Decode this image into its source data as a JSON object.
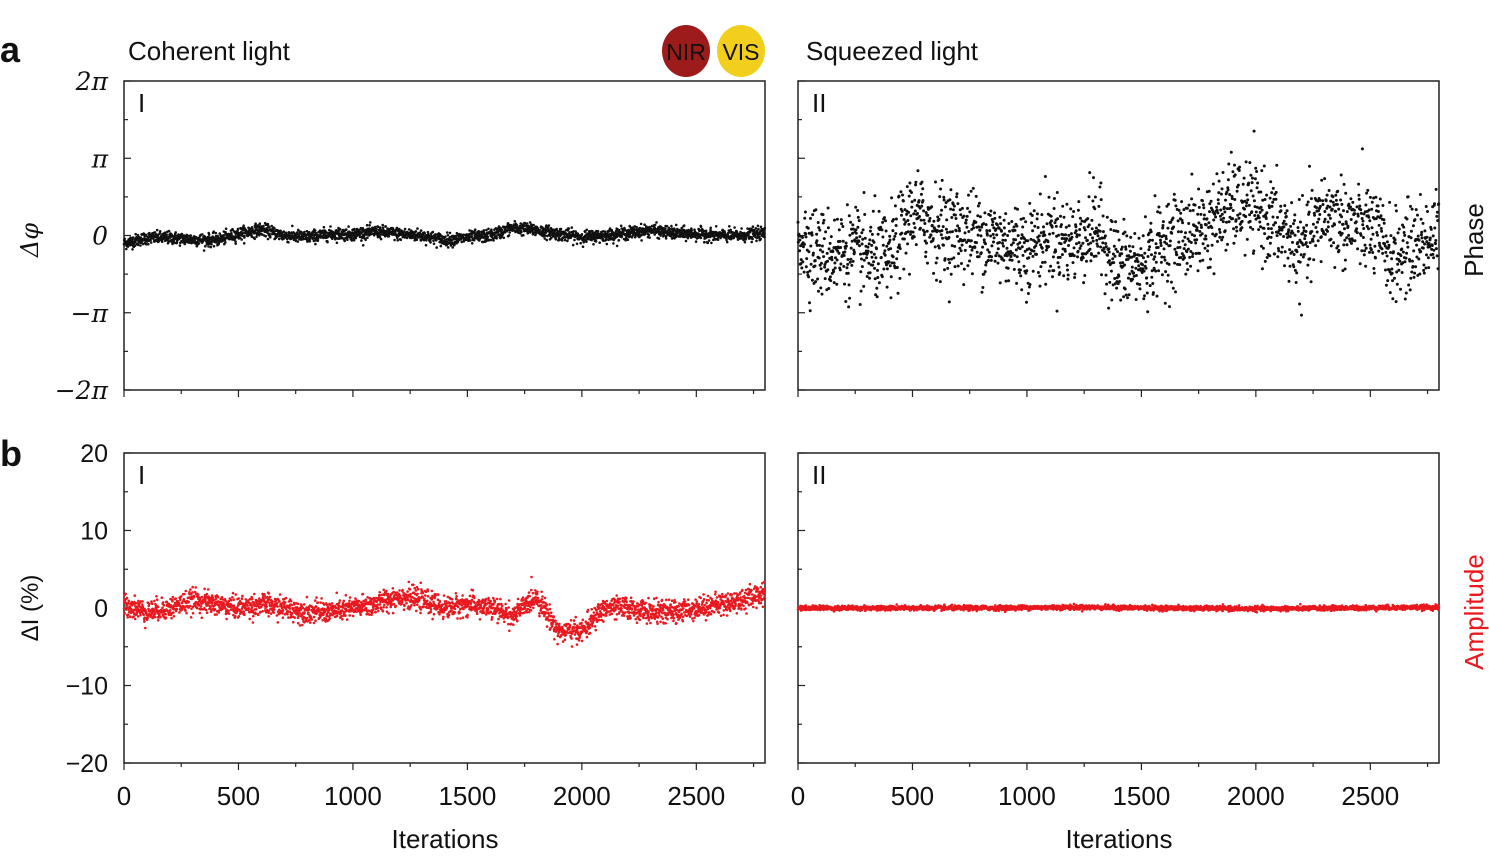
{
  "figure": {
    "panel_letters": [
      "a",
      "b"
    ],
    "column_titles": [
      "Coherent light",
      "Squeezed light"
    ],
    "badges": [
      {
        "label": "NIR",
        "color": "#9e1b1b"
      },
      {
        "label": "VIS",
        "color": "#f2cf1d"
      }
    ],
    "row_side_labels": [
      {
        "label": "Phase",
        "color": "#111111"
      },
      {
        "label": "Amplitude",
        "color": "#e8191f"
      }
    ],
    "colors": {
      "phase": "#111111",
      "amplitude": "#e8191f"
    }
  },
  "chart_data": [
    {
      "type": "scatter",
      "panel": "a",
      "subpanel_label": "I",
      "ylabel": "Δφ",
      "xlabel": "",
      "ytick_labels": [
        "2π",
        "π",
        "0",
        "−π",
        "−2π"
      ],
      "yticks_pi_units": [
        2,
        1,
        0,
        -1,
        -2
      ],
      "ylim_pi_units": [
        -2,
        2
      ],
      "xlim": [
        0,
        2800
      ],
      "x": [
        0,
        100,
        200,
        300,
        400,
        500,
        600,
        700,
        800,
        900,
        1000,
        1100,
        1200,
        1300,
        1400,
        1500,
        1600,
        1700,
        1800,
        1900,
        2000,
        2100,
        2200,
        2300,
        2400,
        2500,
        2600,
        2700,
        2800
      ],
      "y_pi_units": [
        -0.1,
        -0.03,
        -0.03,
        -0.05,
        -0.06,
        0.02,
        0.08,
        0.0,
        -0.02,
        0.02,
        0.02,
        0.05,
        0.02,
        0.0,
        -0.06,
        -0.03,
        0.0,
        0.1,
        0.07,
        0.02,
        -0.02,
        0.0,
        0.03,
        0.07,
        0.03,
        0.02,
        0.0,
        0.0,
        0.03
      ],
      "scatter_spread_pi_units": 0.04,
      "color": "#111111"
    },
    {
      "type": "scatter",
      "panel": "a",
      "subpanel_label": "II",
      "ylim_pi_units": [
        -2,
        2
      ],
      "xlim": [
        0,
        2800
      ],
      "x": [
        0,
        100,
        200,
        300,
        400,
        500,
        600,
        700,
        800,
        900,
        1000,
        1100,
        1200,
        1300,
        1400,
        1500,
        1600,
        1700,
        1800,
        1900,
        2000,
        2100,
        2200,
        2300,
        2400,
        2500,
        2600,
        2700,
        2800
      ],
      "y_pi_units": [
        0.0,
        -0.25,
        -0.2,
        -0.25,
        -0.3,
        0.3,
        0.1,
        0.05,
        0.0,
        -0.1,
        -0.15,
        0.0,
        -0.1,
        0.1,
        -0.4,
        -0.4,
        -0.1,
        0.0,
        0.15,
        0.4,
        0.35,
        0.1,
        -0.2,
        0.3,
        0.15,
        0.1,
        -0.3,
        -0.1,
        0.0
      ],
      "scatter_spread_pi_units": 0.28,
      "color": "#111111"
    },
    {
      "type": "scatter",
      "panel": "b",
      "subpanel_label": "I",
      "ylabel": "ΔI (%)",
      "xlabel": "Iterations",
      "ytick_labels": [
        "20",
        "10",
        "0",
        "−10",
        "−20"
      ],
      "yticks": [
        20,
        10,
        0,
        -10,
        -20
      ],
      "xtick_labels": [
        "0",
        "500",
        "1000",
        "1500",
        "2000",
        "2500"
      ],
      "xticks": [
        0,
        500,
        1000,
        1500,
        2000,
        2500
      ],
      "ylim": [
        -20,
        20
      ],
      "xlim": [
        0,
        2800
      ],
      "x": [
        0,
        100,
        200,
        300,
        400,
        500,
        600,
        700,
        800,
        900,
        1000,
        1100,
        1200,
        1300,
        1400,
        1500,
        1600,
        1700,
        1800,
        1900,
        2000,
        2100,
        2200,
        2300,
        2400,
        2500,
        2600,
        2700,
        2800
      ],
      "y": [
        0.5,
        -0.5,
        0,
        1,
        0.5,
        0,
        0.5,
        0,
        -0.5,
        -0.5,
        0,
        0.5,
        1.5,
        1,
        0,
        0.5,
        0,
        -1,
        1.5,
        -3,
        -3,
        0,
        0,
        -0.5,
        -0.5,
        0,
        0.5,
        1,
        2
      ],
      "scatter_spread": 0.7,
      "color": "#e8191f"
    },
    {
      "type": "scatter",
      "panel": "b",
      "subpanel_label": "II",
      "xlabel": "Iterations",
      "xtick_labels": [
        "0",
        "500",
        "1000",
        "1500",
        "2000",
        "2500"
      ],
      "xticks": [
        0,
        500,
        1000,
        1500,
        2000,
        2500
      ],
      "ylim": [
        -20,
        20
      ],
      "xlim": [
        0,
        2800
      ],
      "x": [
        0,
        400,
        800,
        1200,
        1600,
        2000,
        2400,
        2800
      ],
      "y": [
        0,
        0,
        0,
        0.1,
        0,
        -0.1,
        0,
        0.1
      ],
      "scatter_spread": 0.15,
      "color": "#e8191f"
    }
  ]
}
